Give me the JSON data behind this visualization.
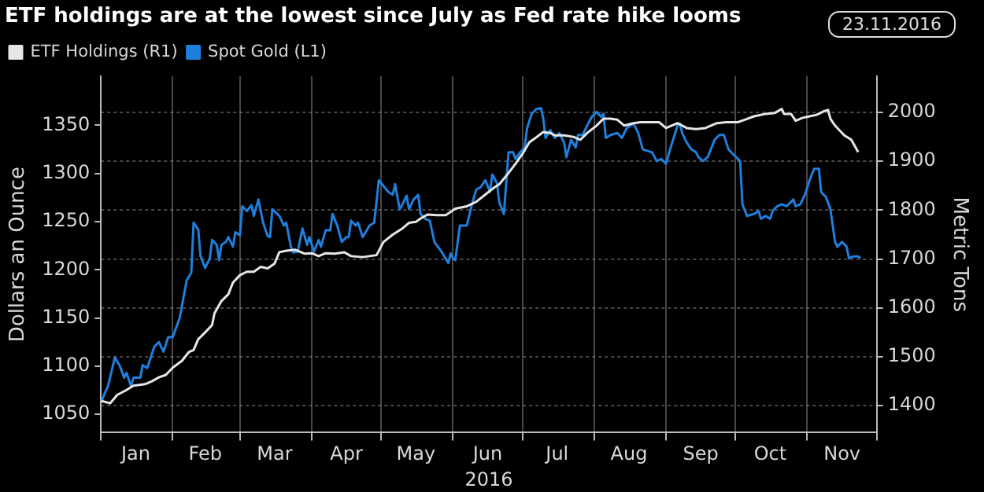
{
  "chart_data": {
    "type": "line",
    "title": "ETF holdings are at the lowest since July as Fed rate hike looms",
    "annotations": [
      "23.11.2016"
    ],
    "xlabel": "2016",
    "ylabel": "Dollars an Ounce",
    "y2label": "Metric Tons",
    "xlim": [
      "2016-01-01",
      "2016-12-01"
    ],
    "xticks": [
      {
        "value": "2016-01-01",
        "label": null
      },
      {
        "value": "2016-01-16",
        "label": "Jan"
      },
      {
        "value": "2016-02-01",
        "label": null
      },
      {
        "value": "2016-02-15",
        "label": "Feb"
      },
      {
        "value": "2016-03-01",
        "label": null
      },
      {
        "value": "2016-03-16",
        "label": "Mar"
      },
      {
        "value": "2016-04-01",
        "label": null
      },
      {
        "value": "2016-04-16",
        "label": "Apr"
      },
      {
        "value": "2016-05-01",
        "label": null
      },
      {
        "value": "2016-05-16",
        "label": "May"
      },
      {
        "value": "2016-06-01",
        "label": null
      },
      {
        "value": "2016-06-16",
        "label": "Jun"
      },
      {
        "value": "2016-07-01",
        "label": null
      },
      {
        "value": "2016-07-16",
        "label": "Jul"
      },
      {
        "value": "2016-08-01",
        "label": null
      },
      {
        "value": "2016-08-16",
        "label": "Aug"
      },
      {
        "value": "2016-09-01",
        "label": null
      },
      {
        "value": "2016-09-16",
        "label": "Sep"
      },
      {
        "value": "2016-10-01",
        "label": null
      },
      {
        "value": "2016-10-16",
        "label": "Oct"
      },
      {
        "value": "2016-11-01",
        "label": null
      },
      {
        "value": "2016-11-16",
        "label": "Nov"
      },
      {
        "value": "2016-12-01",
        "label": null
      }
    ],
    "ylim": [
      1031,
      1401
    ],
    "yticks": [
      1050,
      1100,
      1150,
      1200,
      1250,
      1300,
      1350
    ],
    "y2lim": [
      1345,
      2074
    ],
    "y2ticks": [
      1400,
      1500,
      1600,
      1700,
      1800,
      1900,
      2000
    ],
    "grid": true,
    "legend": "top left",
    "marker": "none",
    "line_style": "solid",
    "series": [
      {
        "name": "ETF Holdings (R1)",
        "color": "#e6e6e6",
        "axis": "y2",
        "x": [
          "2016-01-01",
          "2016-01-05",
          "2016-01-08",
          "2016-01-12",
          "2016-01-15",
          "2016-01-20",
          "2016-01-23",
          "2016-01-26",
          "2016-01-29",
          "2016-02-01",
          "2016-02-05",
          "2016-02-08",
          "2016-02-10",
          "2016-02-12",
          "2016-02-15",
          "2016-02-18",
          "2016-02-19",
          "2016-02-22",
          "2016-02-25",
          "2016-02-27",
          "2016-03-01",
          "2016-03-04",
          "2016-03-07",
          "2016-03-10",
          "2016-03-13",
          "2016-03-16",
          "2016-03-18",
          "2016-03-21",
          "2016-03-25",
          "2016-03-29",
          "2016-04-01",
          "2016-04-04",
          "2016-04-07",
          "2016-04-11",
          "2016-04-15",
          "2016-04-18",
          "2016-04-23",
          "2016-04-26",
          "2016-04-29",
          "2016-05-02",
          "2016-05-06",
          "2016-05-10",
          "2016-05-13",
          "2016-05-16",
          "2016-05-18",
          "2016-05-21",
          "2016-05-25",
          "2016-05-29",
          "2016-06-02",
          "2016-06-07",
          "2016-06-11",
          "2016-06-15",
          "2016-06-19",
          "2016-06-21",
          "2016-06-25",
          "2016-06-28",
          "2016-07-01",
          "2016-07-04",
          "2016-07-07",
          "2016-07-10",
          "2016-07-13",
          "2016-07-15",
          "2016-07-19",
          "2016-07-23",
          "2016-07-26",
          "2016-07-29",
          "2016-08-02",
          "2016-08-05",
          "2016-08-08",
          "2016-08-11",
          "2016-08-14",
          "2016-08-18",
          "2016-08-21",
          "2016-08-24",
          "2016-08-29",
          "2016-09-01",
          "2016-09-06",
          "2016-09-10",
          "2016-09-14",
          "2016-09-18",
          "2016-09-23",
          "2016-09-27",
          "2016-10-02",
          "2016-10-05",
          "2016-10-09",
          "2016-10-14",
          "2016-10-18",
          "2016-10-21",
          "2016-10-22",
          "2016-10-25",
          "2016-10-27",
          "2016-10-30",
          "2016-11-02",
          "2016-11-05",
          "2016-11-08",
          "2016-11-10",
          "2016-11-11",
          "2016-11-13",
          "2016-11-17",
          "2016-11-20",
          "2016-11-23"
        ],
        "values": [
          1410,
          1405,
          1422,
          1432,
          1441,
          1444,
          1450,
          1458,
          1463,
          1478,
          1492,
          1510,
          1514,
          1536,
          1550,
          1565,
          1589,
          1614,
          1628,
          1652,
          1667,
          1674,
          1674,
          1684,
          1681,
          1691,
          1714,
          1717,
          1719,
          1711,
          1712,
          1706,
          1712,
          1711,
          1714,
          1706,
          1704,
          1706,
          1708,
          1735,
          1750,
          1762,
          1774,
          1776,
          1783,
          1791,
          1790,
          1790,
          1803,
          1808,
          1817,
          1832,
          1847,
          1853,
          1876,
          1895,
          1915,
          1939,
          1949,
          1960,
          1958,
          1953,
          1953,
          1950,
          1944,
          1958,
          1973,
          1987,
          1987,
          1985,
          1973,
          1978,
          1980,
          1980,
          1980,
          1968,
          1978,
          1968,
          1966,
          1968,
          1978,
          1980,
          1980,
          1985,
          1992,
          1997,
          1999,
          2007,
          1997,
          1997,
          1983,
          1989,
          1992,
          1995,
          2002,
          2005,
          1987,
          1973,
          1953,
          1944,
          1919
        ]
      },
      {
        "name": "Spot Gold (L1)",
        "color": "#1f7fdc",
        "axis": "y",
        "x": [
          "2016-01-01",
          "2016-01-03",
          "2016-01-04",
          "2016-01-07",
          "2016-01-09",
          "2016-01-11",
          "2016-01-12",
          "2016-01-14",
          "2016-01-15",
          "2016-01-18",
          "2016-01-19",
          "2016-01-21",
          "2016-01-24",
          "2016-01-26",
          "2016-01-28",
          "2016-01-30",
          "2016-02-01",
          "2016-02-04",
          "2016-02-07",
          "2016-02-09",
          "2016-02-10",
          "2016-02-12",
          "2016-02-13",
          "2016-02-15",
          "2016-02-17",
          "2016-02-18",
          "2016-02-20",
          "2016-02-21",
          "2016-02-22",
          "2016-02-24",
          "2016-02-25",
          "2016-02-27",
          "2016-02-28",
          "2016-03-01",
          "2016-03-02",
          "2016-03-04",
          "2016-03-06",
          "2016-03-07",
          "2016-03-09",
          "2016-03-11",
          "2016-03-13",
          "2016-03-14",
          "2016-03-15",
          "2016-03-18",
          "2016-03-20",
          "2016-03-21",
          "2016-03-23",
          "2016-03-24",
          "2016-03-26",
          "2016-03-28",
          "2016-03-30",
          "2016-03-31",
          "2016-04-02",
          "2016-04-04",
          "2016-04-05",
          "2016-04-07",
          "2016-04-09",
          "2016-04-10",
          "2016-04-12",
          "2016-04-14",
          "2016-04-16",
          "2016-04-17",
          "2016-04-18",
          "2016-04-20",
          "2016-04-21",
          "2016-04-23",
          "2016-04-26",
          "2016-04-28",
          "2016-04-30",
          "2016-05-01",
          "2016-05-04",
          "2016-05-06",
          "2016-05-07",
          "2016-05-09",
          "2016-05-10",
          "2016-05-12",
          "2016-05-13",
          "2016-05-15",
          "2016-05-17",
          "2016-05-18",
          "2016-05-20",
          "2016-05-22",
          "2016-05-24",
          "2016-05-27",
          "2016-05-30",
          "2016-05-31",
          "2016-06-01",
          "2016-06-02",
          "2016-06-04",
          "2016-06-07",
          "2016-06-09",
          "2016-06-11",
          "2016-06-13",
          "2016-06-15",
          "2016-06-17",
          "2016-06-18",
          "2016-06-20",
          "2016-06-21",
          "2016-06-23",
          "2016-06-25",
          "2016-06-27",
          "2016-06-28",
          "2016-06-30",
          "2016-07-02",
          "2016-07-03",
          "2016-07-05",
          "2016-07-07",
          "2016-07-09",
          "2016-07-10",
          "2016-07-11",
          "2016-07-13",
          "2016-07-15",
          "2016-07-17",
          "2016-07-19",
          "2016-07-20",
          "2016-07-22",
          "2016-07-24",
          "2016-07-25",
          "2016-07-27",
          "2016-07-29",
          "2016-07-31",
          "2016-08-02",
          "2016-08-04",
          "2016-08-05",
          "2016-08-06",
          "2016-08-08",
          "2016-08-11",
          "2016-08-13",
          "2016-08-15",
          "2016-08-18",
          "2016-08-20",
          "2016-08-22",
          "2016-08-26",
          "2016-08-28",
          "2016-08-30",
          "2016-09-01",
          "2016-09-03",
          "2016-09-06",
          "2016-09-07",
          "2016-09-08",
          "2016-09-10",
          "2016-09-12",
          "2016-09-14",
          "2016-09-15",
          "2016-09-17",
          "2016-09-19",
          "2016-09-22",
          "2016-09-24",
          "2016-09-26",
          "2016-09-28",
          "2016-09-30",
          "2016-10-03",
          "2016-10-04",
          "2016-10-06",
          "2016-10-09",
          "2016-10-11",
          "2016-10-12",
          "2016-10-14",
          "2016-10-16",
          "2016-10-17",
          "2016-10-19",
          "2016-10-21",
          "2016-10-23",
          "2016-10-26",
          "2016-10-27",
          "2016-10-29",
          "2016-10-31",
          "2016-11-02",
          "2016-11-04",
          "2016-11-06",
          "2016-11-07",
          "2016-11-08",
          "2016-11-09",
          "2016-11-11",
          "2016-11-13",
          "2016-11-14",
          "2016-11-16",
          "2016-11-18",
          "2016-11-19",
          "2016-11-21",
          "2016-11-23",
          "2016-11-24"
        ],
        "values": [
          1062,
          1074,
          1079,
          1109,
          1101,
          1088,
          1093,
          1079,
          1088,
          1088,
          1101,
          1098,
          1120,
          1125,
          1115,
          1130,
          1130,
          1150,
          1189,
          1197,
          1249,
          1242,
          1214,
          1202,
          1212,
          1231,
          1226,
          1210,
          1226,
          1229,
          1234,
          1224,
          1239,
          1236,
          1266,
          1261,
          1267,
          1256,
          1273,
          1249,
          1235,
          1234,
          1263,
          1256,
          1246,
          1249,
          1224,
          1218,
          1219,
          1243,
          1226,
          1234,
          1219,
          1231,
          1224,
          1241,
          1241,
          1258,
          1246,
          1229,
          1234,
          1234,
          1251,
          1246,
          1249,
          1234,
          1246,
          1249,
          1293,
          1290,
          1281,
          1278,
          1289,
          1263,
          1267,
          1277,
          1263,
          1273,
          1278,
          1258,
          1253,
          1251,
          1229,
          1219,
          1207,
          1217,
          1212,
          1210,
          1246,
          1246,
          1266,
          1283,
          1286,
          1293,
          1281,
          1299,
          1290,
          1270,
          1258,
          1322,
          1322,
          1315,
          1322,
          1327,
          1347,
          1362,
          1367,
          1368,
          1357,
          1337,
          1345,
          1337,
          1342,
          1332,
          1317,
          1335,
          1327,
          1340,
          1340,
          1350,
          1359,
          1364,
          1359,
          1362,
          1337,
          1340,
          1342,
          1337,
          1347,
          1352,
          1342,
          1325,
          1322,
          1313,
          1315,
          1310,
          1327,
          1350,
          1352,
          1342,
          1332,
          1325,
          1322,
          1317,
          1313,
          1317,
          1335,
          1340,
          1340,
          1325,
          1320,
          1313,
          1268,
          1256,
          1258,
          1261,
          1253,
          1256,
          1253,
          1261,
          1266,
          1268,
          1266,
          1273,
          1266,
          1268,
          1278,
          1293,
          1305,
          1305,
          1281,
          1278,
          1276,
          1263,
          1229,
          1224,
          1229,
          1224,
          1212,
          1214,
          1214,
          1212
        ]
      }
    ]
  }
}
